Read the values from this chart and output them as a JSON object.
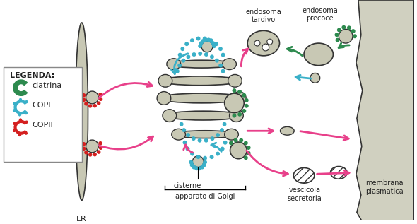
{
  "bg_color": "#ffffff",
  "golgi_color": "#c8c8b4",
  "golgi_outline": "#333333",
  "er_color": "#c8c8b4",
  "er_outline": "#333333",
  "plasma_membrane_color": "#d0d0c0",
  "vesicle_color": "#c8c8b4",
  "clatrina_color": "#2d8a4e",
  "copi_color": "#3ab0c8",
  "copii_color": "#d42020",
  "arrow_pink": "#e8408a",
  "arrow_cyan": "#3ab0c8",
  "arrow_green": "#2d8a4e",
  "legend_box_color": "#ffffff",
  "legend_box_edge": "#888888",
  "text_color": "#222222",
  "label_ER": "ER",
  "label_cisterne": "cisterne",
  "label_golgi": "apparato di Golgi",
  "label_endosoma_tardivo": "endosoma\ntardivo",
  "label_endosoma_precoce": "endosoma\nprecoce",
  "label_vescicola": "vescicola\nsecretoria",
  "label_membrana": "membrana\nplasmatica",
  "legend_title": "LEGENDA:",
  "legend_clatrina": "clatrina",
  "legend_copi": "COPI",
  "legend_copii": "COPII"
}
